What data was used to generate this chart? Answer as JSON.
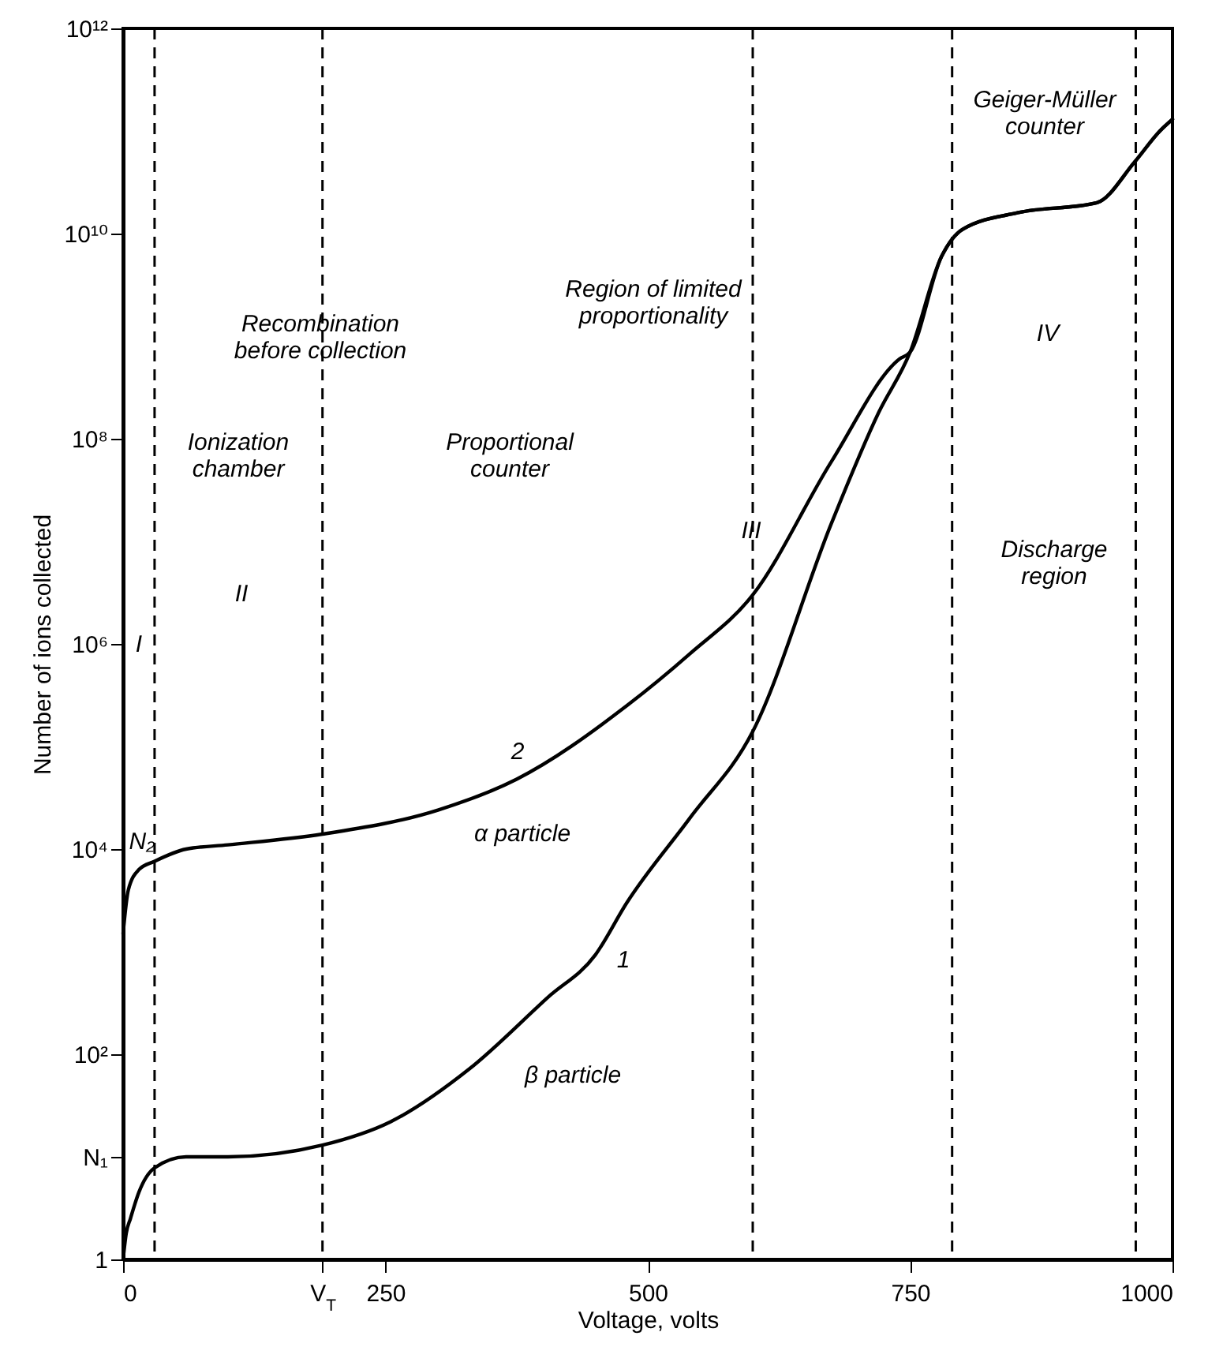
{
  "chart_data": {
    "type": "line",
    "xlabel": "Voltage, volts",
    "ylabel": "Number of ions collected",
    "log": "y",
    "grid": false,
    "line_style": "solid",
    "marker": "none",
    "xlim": [
      0,
      1000
    ],
    "xticks": [
      0,
      {
        "value": 190,
        "label": "V$_{T}$"
      },
      250,
      500,
      750,
      1000
    ],
    "ylim": [
      1,
      1000000000000
    ],
    "yticks": [
      1,
      {
        "value": 10,
        "label": "N₁"
      },
      {
        "value": 100,
        "label": "10²"
      },
      {
        "value": 10000,
        "label": "10⁴"
      },
      {
        "value": 1000000,
        "label": "10⁶"
      },
      {
        "value": 100000000,
        "label": "10⁸"
      },
      {
        "value": 10000000000,
        "label": "10¹⁰"
      },
      {
        "value": 1000000000000,
        "label": "10¹²"
      }
    ],
    "series": [
      {
        "color": "#000000",
        "x": [
          0,
          5,
          15,
          30,
          60,
          100,
          190,
          300,
          375,
          480,
          540,
          600,
          675,
          740,
          750,
          780,
          800,
          853,
          928,
          964,
          988,
          1000
        ],
        "values": [
          1500,
          4000,
          6300,
          7600,
          10000,
          11000,
          14000,
          24000,
          48000,
          250000,
          800000,
          3000000,
          60000000,
          600000000,
          700000000,
          6000000000,
          11000000000,
          16000000000,
          20000000000,
          50000000000,
          100000000000,
          130000000000
        ]
      },
      {
        "color": "#000000",
        "x": [
          0,
          3,
          7,
          15,
          30,
          60,
          100,
          190,
          255,
          330,
          405,
          450,
          480,
          540,
          600,
          675,
          720,
          750,
          780,
          800,
          853,
          928,
          964,
          988,
          1000
        ],
        "values": [
          1,
          1.8,
          2.5,
          4.5,
          7.8,
          10,
          10,
          13,
          22,
          72,
          360,
          930,
          3000,
          20000,
          140000,
          15000000,
          180000000,
          700000000,
          6000000000,
          11000000000,
          16000000000,
          20000000000,
          50000000000,
          100000000000,
          130000000000
        ]
      }
    ],
    "ref_lines": [
      {
        "axis": "x",
        "value": 30,
        "color": "#000000",
        "line_style": "dashed"
      },
      {
        "axis": "x",
        "value": 190,
        "color": "#000000",
        "line_style": "dashed"
      },
      {
        "axis": "x",
        "value": 600,
        "color": "#000000",
        "line_style": "dashed"
      },
      {
        "axis": "x",
        "value": 790,
        "color": "#000000",
        "line_style": "dashed"
      },
      {
        "axis": "x",
        "value": 965,
        "color": "#000000",
        "line_style": "dashed"
      }
    ],
    "annotations": [
      "Recombination\nbefore collection",
      "Ionization\nchamber",
      "Proportional\ncounter",
      "Region of limited\nproportionality",
      "Geiger-Müller\ncounter",
      "Discharge\nregion",
      "I",
      "II",
      "III",
      "IV",
      "2",
      "1",
      "α particle",
      "β particle",
      "N₂"
    ]
  }
}
